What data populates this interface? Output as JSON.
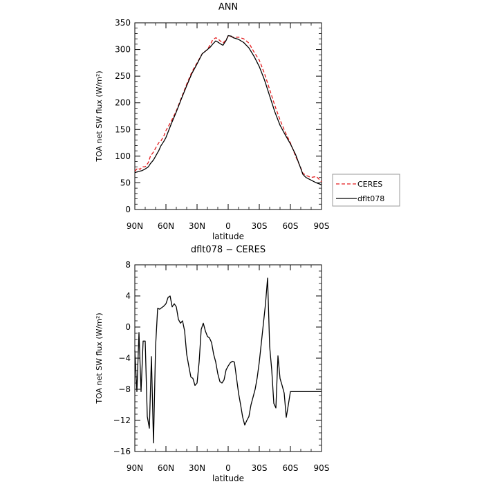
{
  "chart_data": [
    {
      "type": "line",
      "title": "ANN",
      "xlabel": "latitude",
      "ylabel": "TOA net SW flux (W/m²)",
      "xlim": [
        -90,
        90
      ],
      "ylim": [
        0,
        350
      ],
      "x_ticks": [
        "90N",
        "60N",
        "30N",
        "0",
        "30S",
        "60S",
        "90S"
      ],
      "y_ticks": [
        "0",
        "50",
        "100",
        "150",
        "200",
        "250",
        "300",
        "350"
      ],
      "grid": false,
      "legend_position": "right",
      "series": [
        {
          "name": "CERES",
          "style": "dashed",
          "color": "#e31a1c",
          "x": [
            -90,
            -87,
            -85,
            -83,
            -80,
            -77,
            -75,
            -72,
            -70,
            -67,
            -65,
            -62,
            -60,
            -55,
            -50,
            -45,
            -40,
            -35,
            -30,
            -25,
            -20,
            -17,
            -15,
            -12,
            -10,
            -7,
            -5,
            -2,
            0,
            3,
            5,
            10,
            15,
            20,
            25,
            30,
            35,
            40,
            45,
            50,
            55,
            60,
            65,
            70,
            72,
            75,
            80,
            85,
            88,
            90
          ],
          "y": [
            72,
            78,
            75,
            80,
            80,
            88,
            100,
            108,
            115,
            125,
            128,
            138,
            148,
            165,
            185,
            210,
            235,
            258,
            275,
            292,
            300,
            310,
            318,
            322,
            320,
            315,
            312,
            318,
            325,
            324,
            323,
            323,
            320,
            312,
            295,
            280,
            255,
            225,
            195,
            168,
            145,
            125,
            100,
            78,
            68,
            64,
            60,
            62,
            56,
            52
          ]
        },
        {
          "name": "dflt078",
          "style": "solid",
          "color": "#000000",
          "x": [
            -90,
            -87,
            -85,
            -83,
            -80,
            -77,
            -75,
            -72,
            -70,
            -67,
            -65,
            -62,
            -60,
            -55,
            -50,
            -45,
            -40,
            -35,
            -30,
            -25,
            -20,
            -17,
            -15,
            -12,
            -10,
            -7,
            -5,
            -2,
            0,
            3,
            5,
            10,
            15,
            20,
            25,
            30,
            35,
            40,
            45,
            50,
            55,
            60,
            65,
            70,
            72,
            75,
            80,
            85,
            88,
            90
          ],
          "y": [
            69,
            71,
            72,
            73,
            76,
            80,
            86,
            93,
            100,
            110,
            119,
            128,
            135,
            160,
            183,
            208,
            232,
            255,
            273,
            292,
            300,
            305,
            310,
            316,
            314,
            310,
            308,
            317,
            326,
            325,
            322,
            319,
            313,
            303,
            287,
            268,
            243,
            213,
            183,
            158,
            140,
            123,
            103,
            77,
            66,
            60,
            55,
            50,
            48,
            46
          ]
        }
      ]
    },
    {
      "type": "line",
      "title": "dflt078 − CERES",
      "xlabel": "latitude",
      "ylabel": "TOA net SW flux (W/m²)",
      "xlim": [
        -90,
        90
      ],
      "ylim": [
        -16,
        8
      ],
      "x_ticks": [
        "90N",
        "60N",
        "30N",
        "0",
        "30S",
        "60S",
        "90S"
      ],
      "y_ticks": [
        "-16",
        "-12",
        "-8",
        "-4",
        "0",
        "4",
        "8"
      ],
      "grid": false,
      "series": [
        {
          "color": "#000000",
          "x": [
            -90,
            -88,
            -86,
            -84,
            -82,
            -80,
            -78,
            -76,
            -74,
            -72,
            -70,
            -68,
            -66,
            -64,
            -62,
            -60,
            -58,
            -56,
            -54,
            -52,
            -50,
            -48,
            -46,
            -44,
            -42,
            -40,
            -38,
            -36,
            -34,
            -32,
            -30,
            -28,
            -26,
            -24,
            -22,
            -20,
            -18,
            -16,
            -14,
            -12,
            -10,
            -8,
            -6,
            -4,
            -2,
            0,
            2,
            4,
            6,
            8,
            10,
            12,
            14,
            16,
            18,
            20,
            22,
            24,
            26,
            28,
            30,
            32,
            34,
            36,
            38,
            40,
            42,
            44,
            46,
            48,
            50,
            52,
            54,
            56,
            58,
            60,
            62,
            64,
            66,
            68,
            70,
            72,
            74,
            76,
            78,
            80,
            82,
            84,
            86,
            88,
            90
          ],
          "y": [
            -3,
            -8.3,
            -0.7,
            -8.3,
            -1.8,
            -1.8,
            -11.5,
            -13,
            -3.8,
            -14.9,
            -2.5,
            2.4,
            2.3,
            2.5,
            2.7,
            3.0,
            3.8,
            4.0,
            2.6,
            3.0,
            2.6,
            1.0,
            0.5,
            0.8,
            -0.5,
            -3.5,
            -5.0,
            -6.4,
            -6.6,
            -7.5,
            -7.2,
            -4.5,
            -0.3,
            0.5,
            -0.5,
            -1.2,
            -1.4,
            -2.0,
            -3.5,
            -4.5,
            -6.0,
            -7.0,
            -7.2,
            -6.8,
            -5.5,
            -5.0,
            -4.6,
            -4.4,
            -4.5,
            -6.5,
            -8.5,
            -10,
            -11.6,
            -12.6,
            -12.0,
            -11.5,
            -10.0,
            -9.0,
            -8.0,
            -6.5,
            -4.5,
            -2.0,
            0.5,
            3.0,
            6.3,
            -2.5,
            -5.5,
            -9.8,
            -10.4,
            -3.7,
            -6.6,
            -7.5,
            -8.5,
            -11.6,
            -10.0,
            -8.3,
            -8.3,
            -8.3,
            -8.3,
            -8.3,
            -8.3,
            -8.3,
            -8.3,
            -8.3,
            -8.3,
            -8.3,
            -8.3,
            -8.3,
            -8.3,
            -8.3,
            -8.3
          ]
        }
      ]
    }
  ]
}
